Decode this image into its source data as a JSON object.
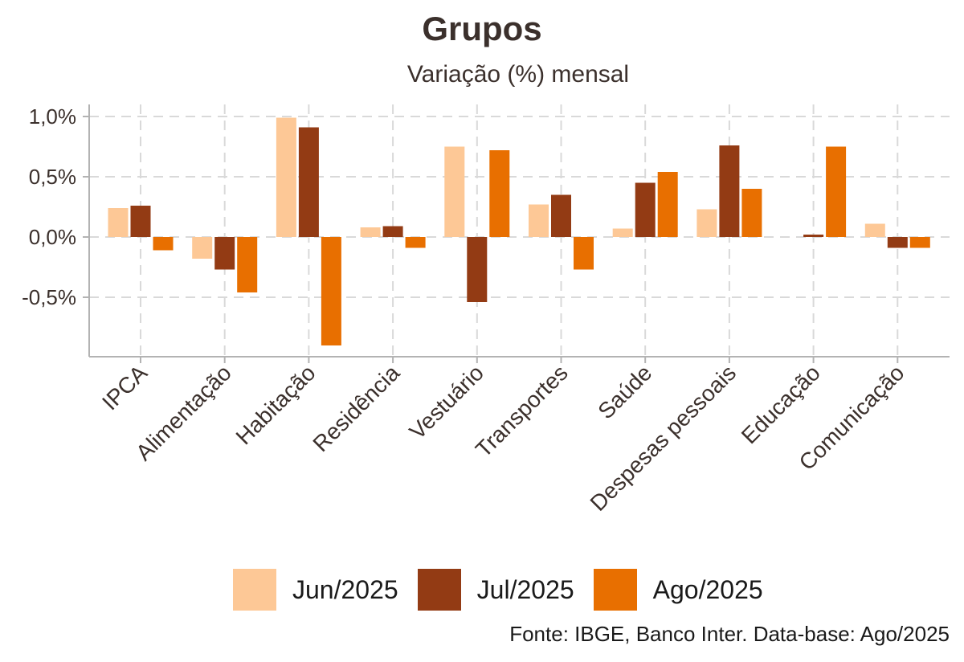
{
  "title": "Grupos",
  "subtitle": "Variação (%) mensal",
  "source": "Fonte: IBGE, Banco Inter. Data-base: Ago/2025",
  "colors": {
    "Jun/2025": "#fdc896",
    "Jul/2025": "#933b14",
    "Ago/2025": "#e86f00",
    "grid": "#d9d9d9",
    "axis": "#b3b3b3"
  },
  "chart_data": {
    "type": "bar",
    "title": "Grupos",
    "subtitle": "Variação (%) mensal",
    "categories": [
      "IPCA",
      "Alimentação",
      "Habitação",
      "Residência",
      "Vestuário",
      "Transportes",
      "Saúde",
      "Despesas pessoais",
      "Educação",
      "Comunicação"
    ],
    "series": [
      {
        "name": "Jun/2025",
        "values": [
          0.24,
          -0.18,
          0.99,
          0.08,
          0.75,
          0.27,
          0.07,
          0.23,
          0.0,
          0.11
        ]
      },
      {
        "name": "Jul/2025",
        "values": [
          0.26,
          -0.27,
          0.91,
          0.09,
          -0.54,
          0.35,
          0.45,
          0.76,
          0.02,
          -0.09
        ]
      },
      {
        "name": "Ago/2025",
        "values": [
          -0.11,
          -0.46,
          -0.9,
          -0.09,
          0.72,
          -0.27,
          0.54,
          0.4,
          0.75,
          -0.09
        ]
      }
    ],
    "yticks": [
      1.0,
      0.5,
      0.0,
      -0.5
    ],
    "ytick_labels": [
      "1,0%",
      "0,5%",
      "0,0%",
      "-0,5%"
    ],
    "ylim": [
      -1.0,
      1.08
    ],
    "grid": true,
    "legend": "bottom"
  }
}
